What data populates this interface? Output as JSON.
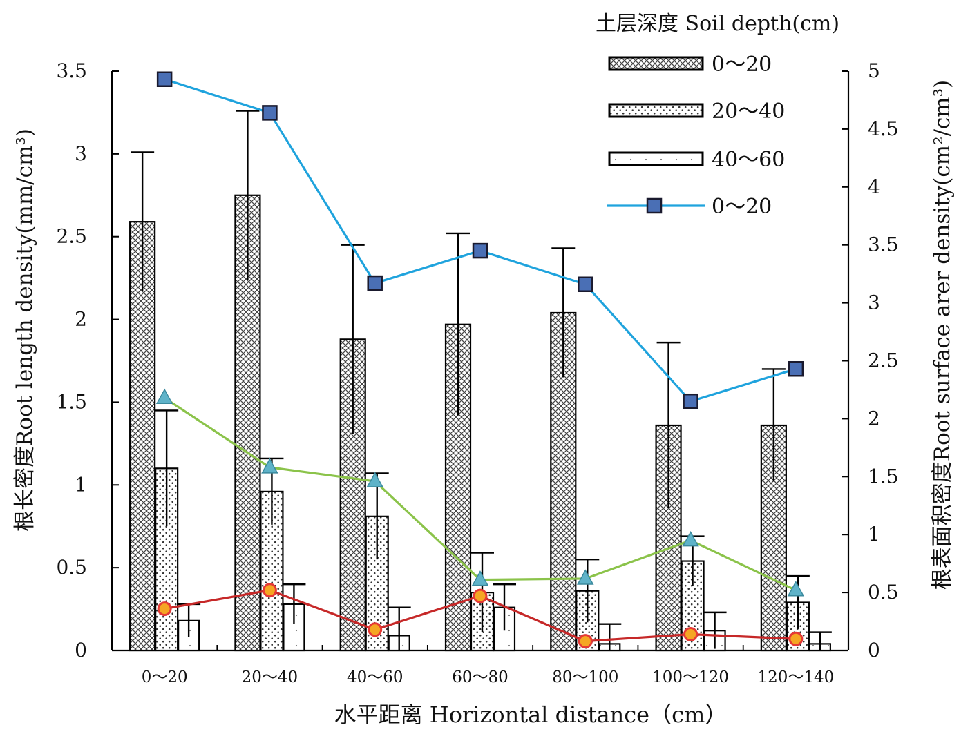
{
  "chart_data": {
    "type": "bar",
    "categories": [
      "0～20",
      "20～40",
      "40～60",
      "60～80",
      "80～100",
      "100～120",
      "120～140"
    ],
    "xlabel": "水平距离 Horizontal distance（cm）",
    "ylabel_left": "根长密度Root length density(mm/cm³)",
    "ylabel_right": "根表面积密度Root surface arer density(cm²/cm³)",
    "y_left": {
      "lim": [
        0,
        3.5
      ],
      "ticks": [
        "0",
        "0.5",
        "1",
        "1.5",
        "2",
        "2.5",
        "3",
        "3.5"
      ]
    },
    "y_right": {
      "lim": [
        0,
        5
      ],
      "ticks": [
        "0",
        "0.5",
        "1",
        "1.5",
        "2",
        "2.5",
        "3",
        "3.5",
        "4",
        "4.5",
        "5"
      ]
    },
    "legend": {
      "title": "土层深度 Soil depth(cm)",
      "placement": "top-right",
      "entries": [
        "0～20",
        "20～40",
        "40～60",
        "0～20"
      ]
    },
    "bar_series": [
      {
        "name": "0～20",
        "values": [
          2.59,
          2.75,
          1.88,
          1.97,
          2.04,
          1.36,
          1.36
        ],
        "errors": [
          0.42,
          0.51,
          0.57,
          0.55,
          0.39,
          0.5,
          0.34
        ]
      },
      {
        "name": "20～40",
        "values": [
          1.1,
          0.96,
          0.81,
          0.35,
          0.36,
          0.54,
          0.29
        ],
        "errors": [
          0.35,
          0.2,
          0.26,
          0.24,
          0.19,
          0.15,
          0.16
        ]
      },
      {
        "name": "40～60",
        "values": [
          0.18,
          0.28,
          0.09,
          0.26,
          0.04,
          0.12,
          0.04
        ],
        "errors": [
          0.1,
          0.12,
          0.17,
          0.14,
          0.12,
          0.11,
          0.07
        ]
      }
    ],
    "line_series": [
      {
        "name": "0～20",
        "axis": "right",
        "marker": "square",
        "color": "#1fa3dd",
        "values": [
          4.93,
          4.64,
          3.17,
          3.45,
          3.16,
          2.15,
          2.43
        ]
      },
      {
        "axis": "right",
        "marker": "triangle",
        "color": "#8bc34a",
        "values": [
          2.18,
          1.58,
          1.46,
          0.61,
          0.62,
          0.95,
          0.52
        ]
      },
      {
        "axis": "right",
        "marker": "circle",
        "color": "#c62828",
        "values": [
          0.36,
          0.52,
          0.18,
          0.47,
          0.08,
          0.14,
          0.1
        ]
      }
    ]
  }
}
